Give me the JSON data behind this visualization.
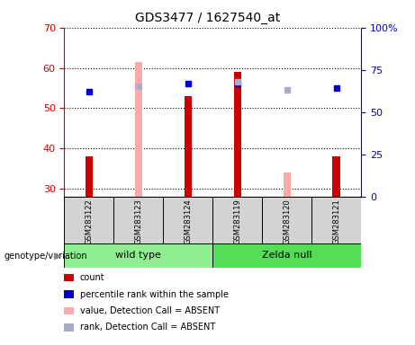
{
  "title": "GDS3477 / 1627540_at",
  "samples": [
    "GSM283122",
    "GSM283123",
    "GSM283124",
    "GSM283119",
    "GSM283120",
    "GSM283121"
  ],
  "ylim_left": [
    28,
    70
  ],
  "ylim_right": [
    0,
    100
  ],
  "yticks_left": [
    30,
    40,
    50,
    60,
    70
  ],
  "yticks_right": [
    0,
    25,
    50,
    75,
    100
  ],
  "ytick_labels_right": [
    "0",
    "25",
    "50",
    "75",
    "100%"
  ],
  "count_values": [
    38.0,
    null,
    53.0,
    59.0,
    null,
    38.0
  ],
  "rank_values": [
    54.0,
    null,
    56.0,
    56.0,
    null,
    55.0
  ],
  "absent_value_values": [
    null,
    61.5,
    null,
    null,
    34.0,
    null
  ],
  "absent_rank_values": [
    null,
    55.5,
    null,
    56.5,
    54.5,
    null
  ],
  "count_color": "#cc0000",
  "rank_color": "#0000cc",
  "absent_value_color": "#ffaaaa",
  "absent_rank_color": "#aaaacc",
  "left_tick_color": "#cc0000",
  "right_tick_color": "#0000cc",
  "sample_bg_color": "#d3d3d3",
  "wildtype_color": "#90ee90",
  "zelda_color": "#55dd55",
  "legend_items": [
    "count",
    "percentile rank within the sample",
    "value, Detection Call = ABSENT",
    "rank, Detection Call = ABSENT"
  ],
  "legend_colors": [
    "#cc0000",
    "#0000cc",
    "#ffaaaa",
    "#aaaacc"
  ],
  "bar_width": 0.15
}
